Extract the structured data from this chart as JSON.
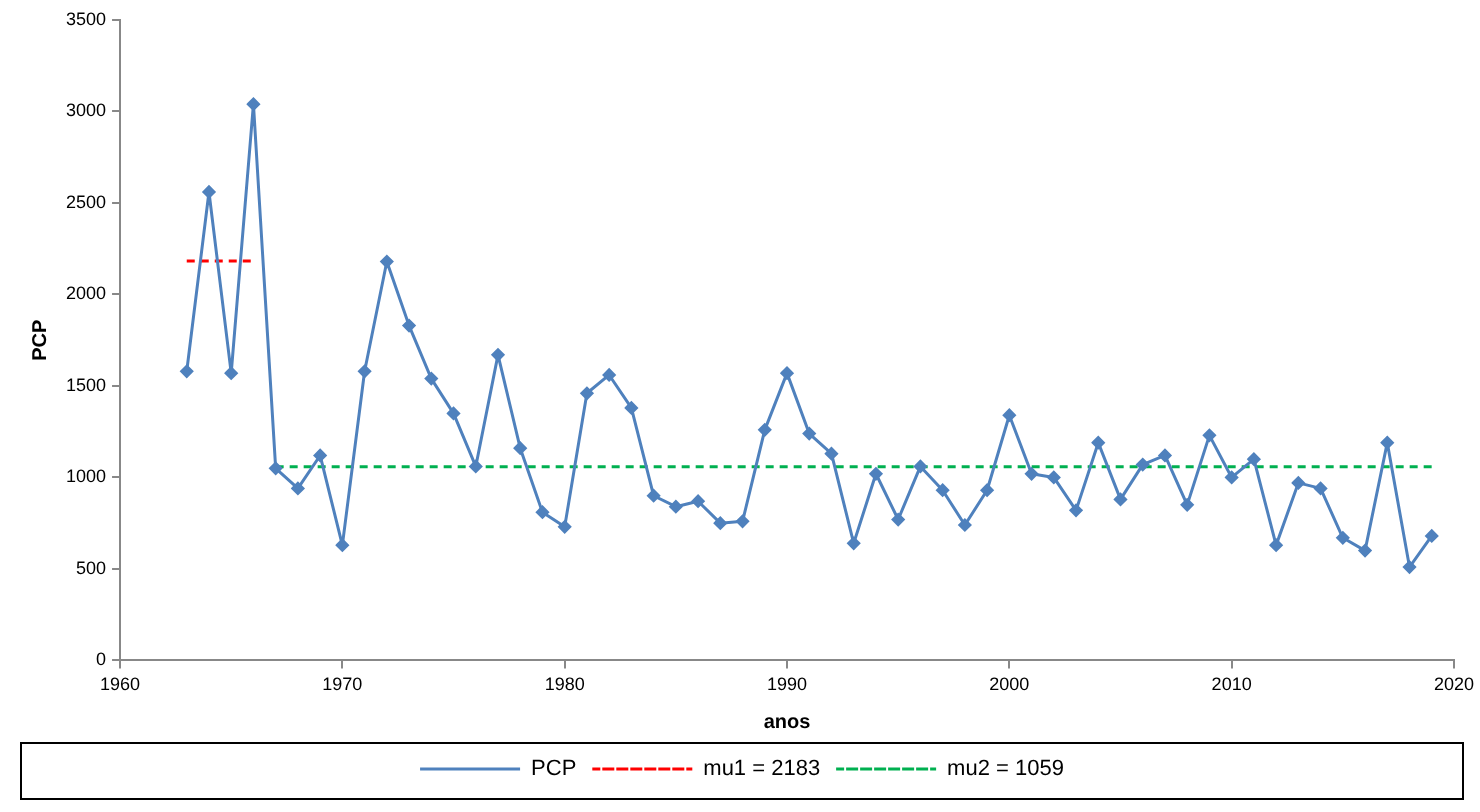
{
  "chart_data": {
    "type": "line",
    "xlabel": "anos",
    "ylabel": "PCP",
    "xlim": [
      1960,
      2020
    ],
    "xticks": [
      1960,
      1970,
      1980,
      1990,
      2000,
      2010,
      2020
    ],
    "ylim": [
      0,
      3500
    ],
    "yticks": [
      0,
      500,
      1000,
      1500,
      2000,
      2500,
      3000,
      3500
    ],
    "grid": false,
    "legend": "bottom",
    "x": [
      1963,
      1964,
      1965,
      1966,
      1967,
      1968,
      1969,
      1970,
      1971,
      1972,
      1973,
      1974,
      1975,
      1976,
      1977,
      1978,
      1979,
      1980,
      1981,
      1982,
      1983,
      1984,
      1985,
      1986,
      1987,
      1988,
      1989,
      1990,
      1991,
      1992,
      1993,
      1994,
      1995,
      1996,
      1997,
      1998,
      1999,
      2000,
      2001,
      2002,
      2003,
      2004,
      2005,
      2006,
      2007,
      2008,
      2009,
      2010,
      2011,
      2012,
      2013,
      2014,
      2015,
      2016,
      2017,
      2018,
      2019
    ],
    "series": [
      {
        "name": "PCP",
        "color": "#4f81bd",
        "marker": "diamond",
        "line_style": "solid",
        "values": [
          1580,
          2560,
          1570,
          3040,
          1050,
          940,
          1120,
          630,
          1580,
          2180,
          1830,
          1540,
          1350,
          1060,
          1670,
          1160,
          810,
          730,
          1460,
          1560,
          1380,
          900,
          840,
          870,
          750,
          760,
          1260,
          1570,
          1240,
          1130,
          640,
          1020,
          770,
          1060,
          930,
          740,
          930,
          1340,
          1020,
          1000,
          820,
          1190,
          880,
          1070,
          1120,
          850,
          1230,
          1000,
          1100,
          630,
          970,
          940,
          670,
          600,
          1190,
          510,
          680
        ]
      },
      {
        "name": "mu1 = 2183",
        "color": "#ff0000",
        "marker": "none",
        "line_style": "dashed",
        "x": [
          1963,
          1966
        ],
        "values": [
          2183,
          2183
        ]
      },
      {
        "name": "mu2 = 1059",
        "color": "#00b050",
        "marker": "none",
        "line_style": "dashed",
        "x": [
          1967,
          2019
        ],
        "values": [
          1059,
          1059
        ]
      }
    ]
  }
}
